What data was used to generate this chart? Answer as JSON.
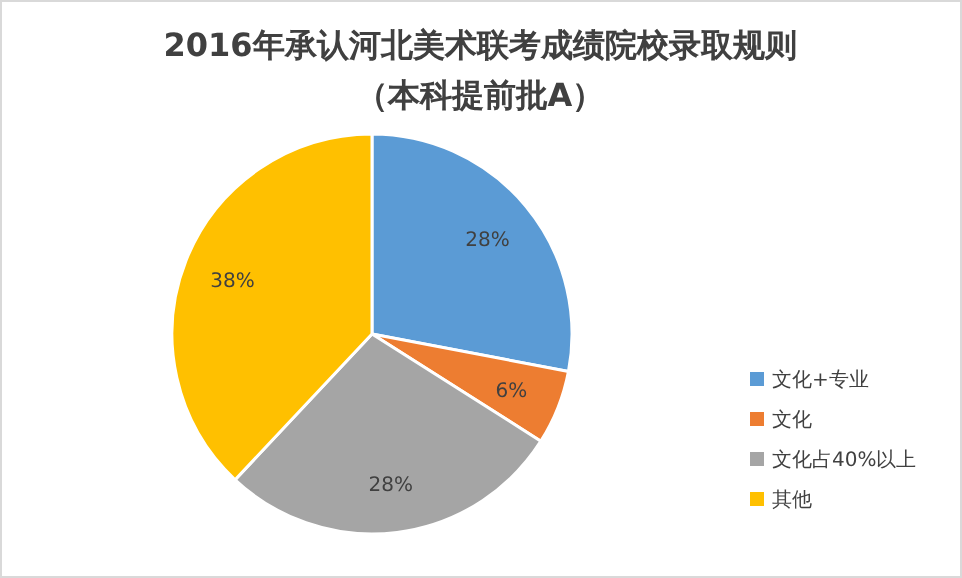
{
  "chart_data": {
    "type": "pie",
    "title": "2016年承认河北美术联考成绩院校录取规则",
    "subtitle": "（本科提前批A）",
    "categories": [
      "文化+专业",
      "文化",
      "文化占40%以上",
      "其他"
    ],
    "values": [
      28,
      6,
      28,
      38
    ],
    "value_labels": [
      "28%",
      "6%",
      "28%",
      "38%"
    ],
    "colors": [
      "#5b9bd5",
      "#ed7d31",
      "#a5a5a5",
      "#ffc000"
    ],
    "legend": "right"
  }
}
